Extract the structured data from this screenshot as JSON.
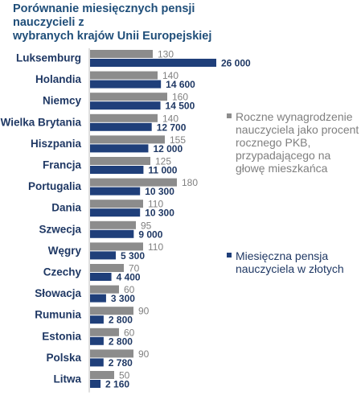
{
  "chart_data": {
    "type": "bar",
    "orientation": "horizontal",
    "title": [
      "Porównanie miesięcznych pensji nauczycieli z",
      "wybranych krajów  Unii Europejskiej"
    ],
    "categories": [
      "Luksemburg",
      "Holandia",
      "Niemcy",
      "Wielka Brytania",
      "Hiszpania",
      "Francja",
      "Portugalia",
      "Dania",
      "Szwecja",
      "Węgry",
      "Czechy",
      "Słowacja",
      "Rumunia",
      "Estonia",
      "Polska",
      "Litwa"
    ],
    "series": [
      {
        "name": "Roczne wynagrodzenie nauczyciela jako procent rocznego PKB, przypadającego na głowę mieszkańca",
        "values": [
          130,
          140,
          160,
          140,
          155,
          125,
          180,
          110,
          95,
          110,
          70,
          60,
          90,
          60,
          90,
          50
        ],
        "labels": [
          "130",
          "140",
          "160",
          "140",
          "155",
          "125",
          "180",
          "110",
          "95",
          "110",
          "70",
          "60",
          "90",
          "60",
          "90",
          "50"
        ],
        "color": "#8c8c8c",
        "label_color": "#808080"
      },
      {
        "name": "Miesięczna pensja nauczyciela w złotych",
        "values": [
          26000,
          14600,
          14500,
          12700,
          12000,
          11000,
          10300,
          10300,
          9000,
          5300,
          4400,
          3300,
          2800,
          2800,
          2780,
          2160
        ],
        "labels": [
          "26 000",
          "14 600",
          "14 500",
          "12 700",
          "12 000",
          "11 000",
          "10 300",
          "10 300",
          "9 000",
          "5 300",
          "4 400",
          "3 300",
          "2 800",
          "2 800",
          "2 780",
          "2 160"
        ],
        "color": "#1f3f7a",
        "label_color": "#1f3864"
      }
    ],
    "legend_position": "right",
    "grid": false,
    "category_color": "#1f3864"
  }
}
